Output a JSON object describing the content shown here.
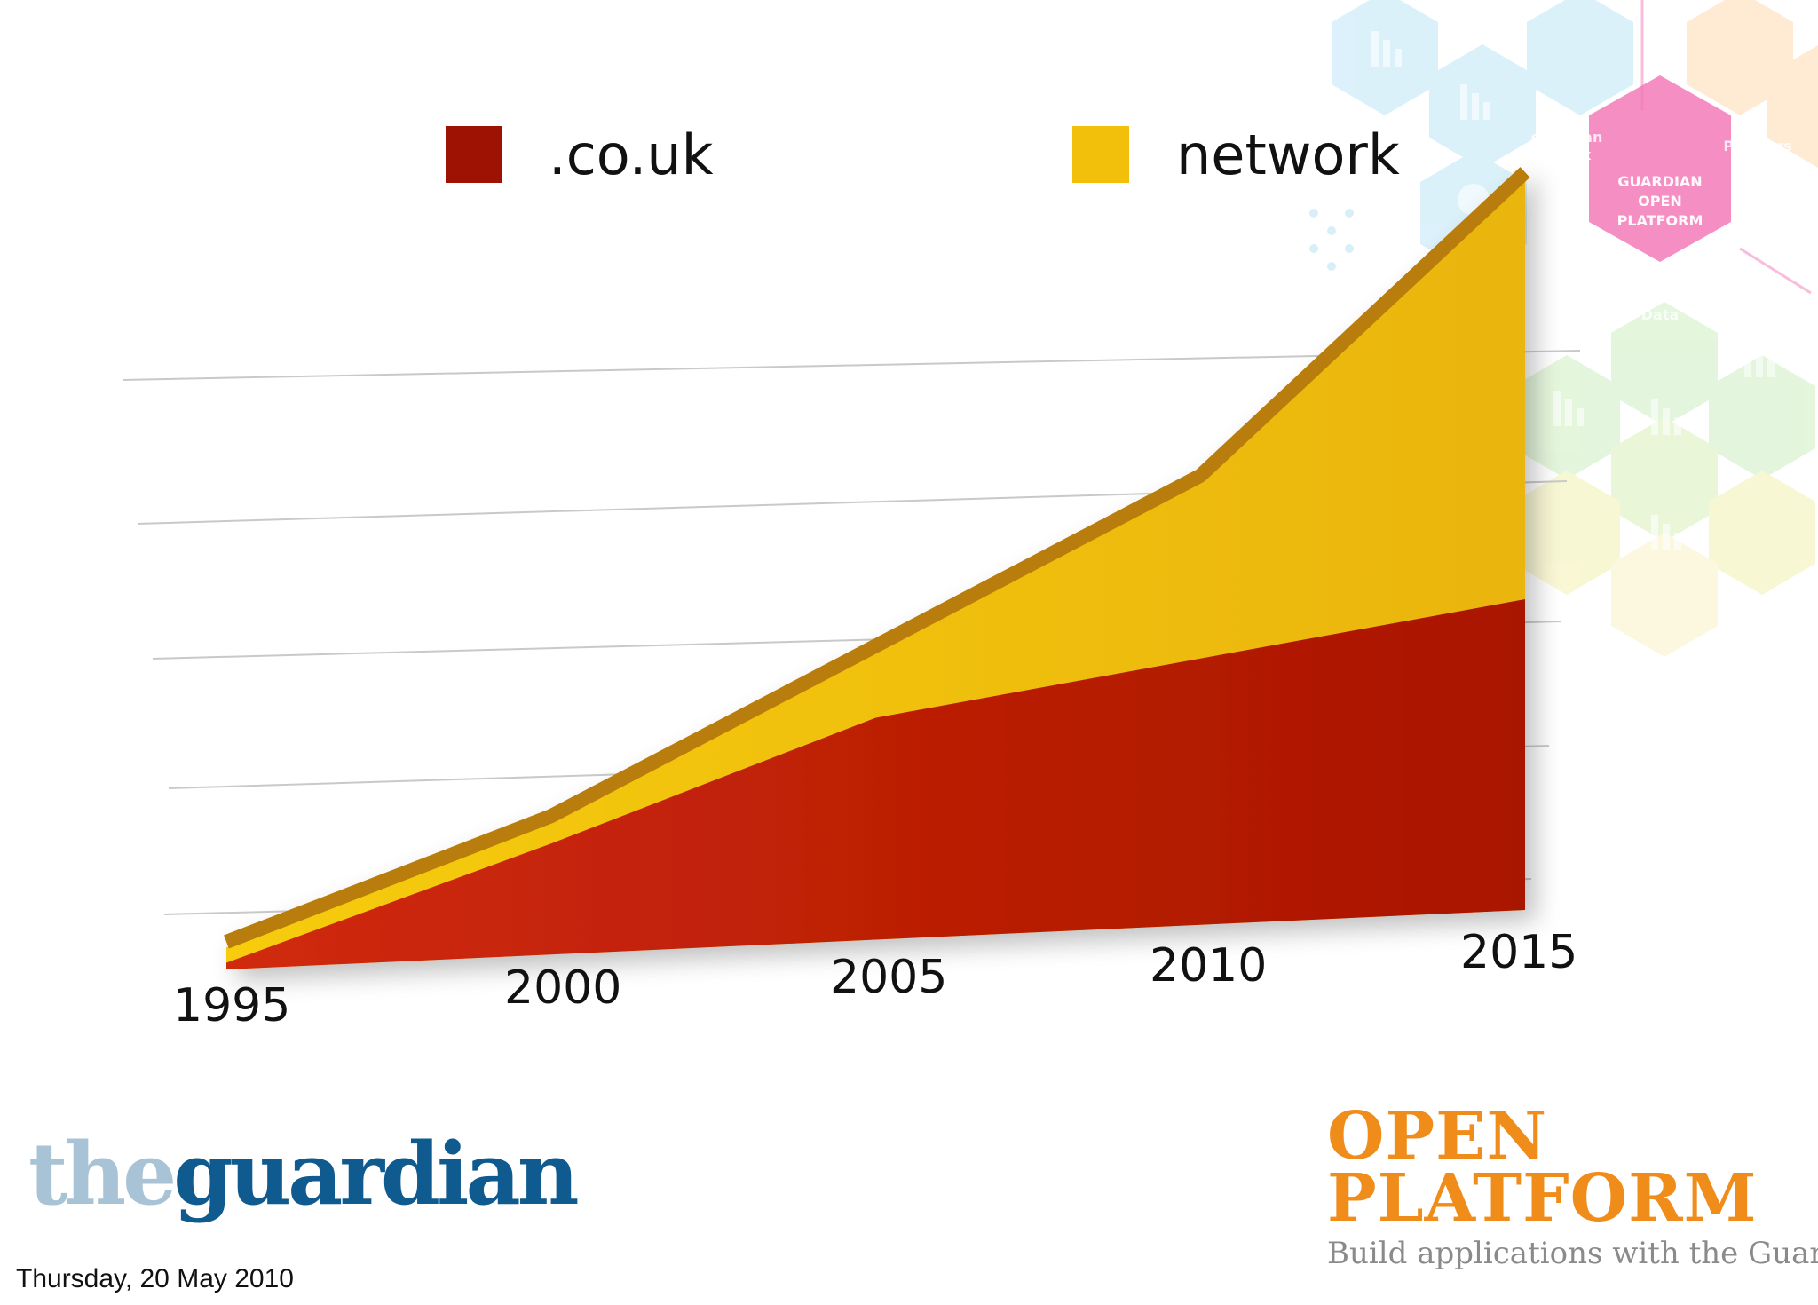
{
  "chart_data": {
    "type": "area",
    "title": "",
    "xlabel": "",
    "ylabel": "",
    "categories": [
      "1995",
      "2000",
      "2005",
      "2010",
      "2015"
    ],
    "series": [
      {
        "name": ".co.uk",
        "color": "#b51a06",
        "values": [
          0.3,
          5.0,
          10.0,
          12.0,
          14.0
        ]
      },
      {
        "name": "network",
        "color": "#f2bf0a",
        "values": [
          1.0,
          6.0,
          13.0,
          20.0,
          33.0
        ]
      }
    ],
    "stacked": false,
    "ylim": [
      0,
      40
    ],
    "grid": true,
    "legend": "top"
  },
  "legend": {
    "items": [
      {
        "label": ".co.uk",
        "color": "#9e1204"
      },
      {
        "label": "network",
        "color": "#f2bf0a"
      }
    ]
  },
  "decoration": {
    "hub_label": [
      "GUARDIAN",
      "OPEN",
      "PLATFORM"
    ],
    "node_guardian": [
      "guardian",
      ".co.uk"
    ],
    "node_partners": "Partners",
    "node_data": "Data"
  },
  "logos": {
    "guardian_the": "the",
    "guardian_name": "guardian",
    "open_platform_line1": "OPEN",
    "open_platform_line2": "PLATFORM",
    "open_platform_tagline": "Build applications with the Guardian"
  },
  "footer": {
    "date": "Thursday, 20 May 2010"
  }
}
